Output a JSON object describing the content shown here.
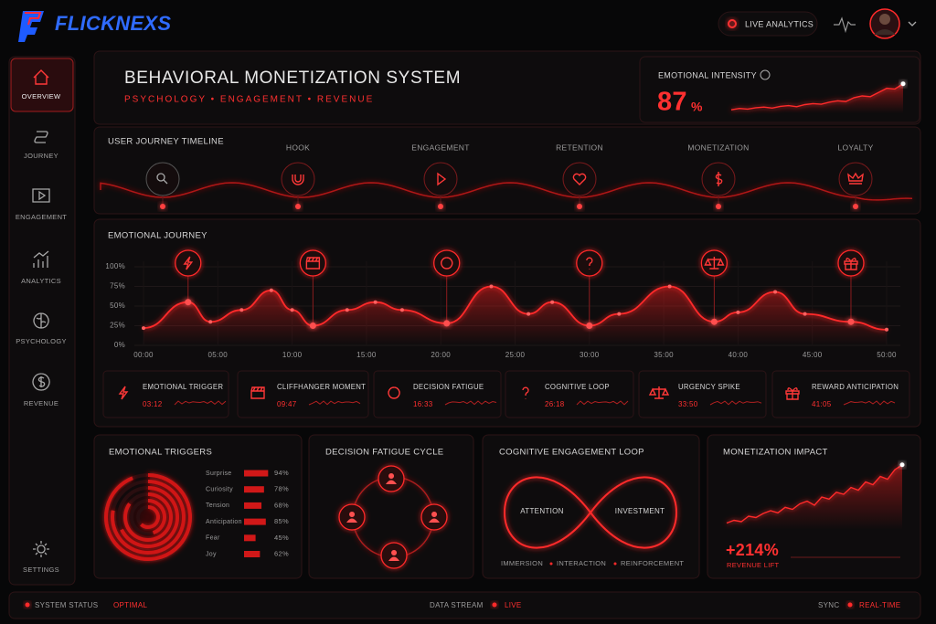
{
  "brand": "FLICKNEXS",
  "header": {
    "live": "LIVE ANALYTICS"
  },
  "nav": [
    "OVERVIEW",
    "JOURNEY",
    "ENGAGEMENT",
    "ANALYTICS",
    "PSYCHOLOGY",
    "REVENUE",
    "SETTINGS"
  ],
  "hero": {
    "title": "BEHAVIORAL MONETIZATION SYSTEM",
    "subtitle": "PSYCHOLOGY  •  ENGAGEMENT  •  REVENUE"
  },
  "intensity": {
    "label": "EMOTIONAL INTENSITY",
    "value": 87,
    "unit": "%",
    "ylim": [
      0,
      100
    ],
    "trend": [
      10,
      14,
      12,
      16,
      18,
      15,
      20,
      22,
      19,
      25,
      28,
      26,
      32,
      36,
      34,
      45,
      50,
      48,
      60,
      72,
      70,
      85
    ]
  },
  "timeline": {
    "title": "USER JOURNEY TIMELINE",
    "stages": [
      "HOOK",
      "ENGAGEMENT",
      "RETENTION",
      "MONETIZATION",
      "LOYALTY"
    ]
  },
  "emotional_journey": {
    "type": "line",
    "title": "EMOTIONAL JOURNEY",
    "color": "#ff2a2a",
    "x": [
      0,
      3,
      4.5,
      6.6,
      8.6,
      10,
      11.4,
      13.7,
      15.6,
      17.4,
      20.4,
      23.4,
      25.9,
      27.5,
      30,
      32,
      35.4,
      38.4,
      40,
      42.5,
      44.5,
      47.6,
      50
    ],
    "values": [
      22,
      55,
      30,
      45,
      70,
      45,
      25,
      45,
      55,
      45,
      28,
      75,
      40,
      55,
      25,
      40,
      75,
      30,
      42,
      68,
      40,
      30,
      20
    ],
    "xlim": [
      0,
      50
    ],
    "xticks": [
      {
        "value": 0,
        "label": "00:00"
      },
      {
        "value": 5,
        "label": "05:00"
      },
      {
        "value": 10,
        "label": "10:00"
      },
      {
        "value": 15,
        "label": "15:00"
      },
      {
        "value": 20,
        "label": "20:00"
      },
      {
        "value": 25,
        "label": "25:00"
      },
      {
        "value": 30,
        "label": "30:00"
      },
      {
        "value": 35,
        "label": "35:00"
      },
      {
        "value": 40,
        "label": "40:00"
      },
      {
        "value": 45,
        "label": "45:00"
      },
      {
        "value": 50,
        "label": "50:00"
      }
    ],
    "ylim": [
      0,
      100
    ],
    "yticks": [
      {
        "value": 0,
        "label": "0%"
      },
      {
        "value": 25,
        "label": "25%"
      },
      {
        "value": 50,
        "label": "50%"
      },
      {
        "value": 75,
        "label": "75%"
      },
      {
        "value": 100,
        "label": "100%"
      }
    ],
    "grid": true
  },
  "events": [
    {
      "name": "EMOTIONAL TRIGGER",
      "time": "03:12"
    },
    {
      "name": "CLIFFHANGER MOMENT",
      "time": "09:47"
    },
    {
      "name": "DECISION FATIGUE",
      "time": "16:33"
    },
    {
      "name": "COGNITIVE LOOP",
      "time": "26:18"
    },
    {
      "name": "URGENCY SPIKE",
      "time": "33:50"
    },
    {
      "name": "REWARD ANTICIPATION",
      "time": "41:05"
    }
  ],
  "emotional_triggers": {
    "type": "bar",
    "title": "EMOTIONAL TRIGGERS",
    "color": "#d01818",
    "categories": [
      "Surprise",
      "Curiosity",
      "Tension",
      "Anticipation",
      "Fear",
      "Joy"
    ],
    "values": [
      94,
      78,
      68,
      85,
      45,
      62
    ],
    "value_labels": [
      "94%",
      "78%",
      "68%",
      "85%",
      "45%",
      "62%"
    ],
    "xlim": [
      0,
      100
    ]
  },
  "fatigue": {
    "title": "DECISION FATIGUE CYCLE"
  },
  "loop": {
    "title": "COGNITIVE ENGAGEMENT LOOP",
    "left": "ATTENTION",
    "right": "INVESTMENT",
    "footer": [
      "IMMERSION",
      "INTERACTION",
      "REINFORCEMENT"
    ]
  },
  "impact": {
    "title": "MONETIZATION IMPACT",
    "value": 214,
    "value_label": "+214%",
    "caption": "REVENUE LIFT",
    "ylim": [
      0,
      100
    ],
    "trend": [
      10,
      14,
      12,
      20,
      18,
      24,
      28,
      25,
      33,
      30,
      38,
      42,
      36,
      48,
      45,
      55,
      52,
      62,
      58,
      70,
      66,
      78,
      74,
      88,
      95
    ]
  },
  "status": [
    {
      "label": "SYSTEM STATUS",
      "value": "OPTIMAL"
    },
    {
      "label": "DATA STREAM",
      "value": "LIVE"
    },
    {
      "label": "SYNC",
      "value": "REAL-TIME"
    }
  ]
}
